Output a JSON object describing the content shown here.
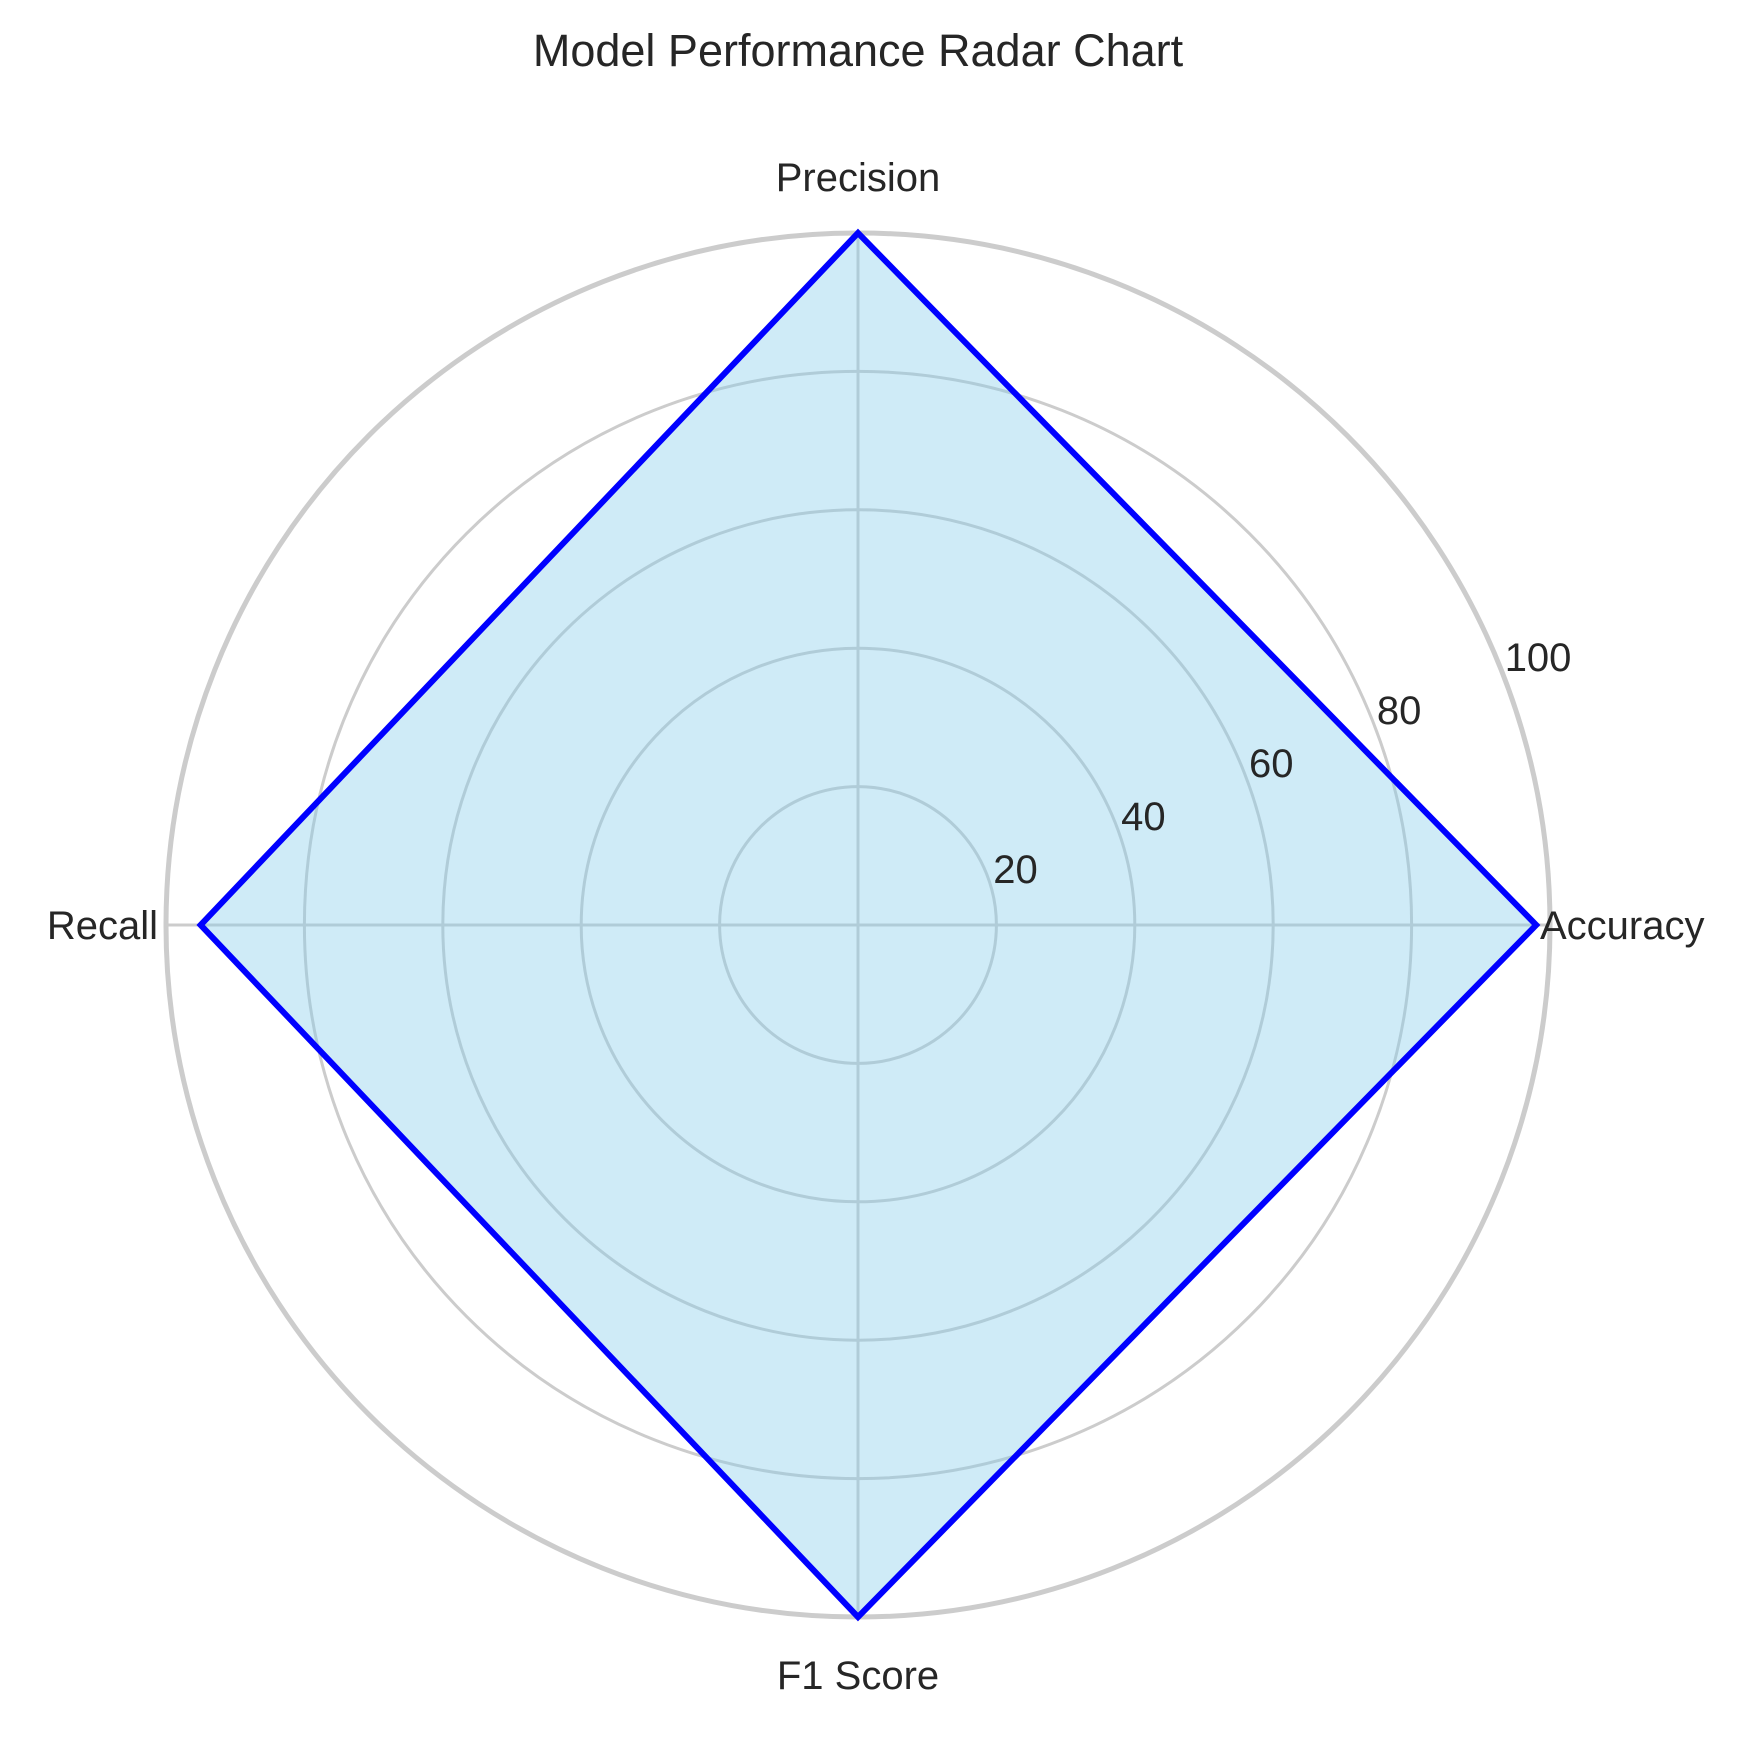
{
  "chart_data": {
    "type": "radar",
    "title": "Model Performance Radar Chart",
    "categories": [
      "Accuracy",
      "Precision",
      "Recall",
      "F1 Score"
    ],
    "series": [
      {
        "values": [
          98,
          100,
          95,
          100
        ],
        "line_color": "#0000ff",
        "fill_color": "#87ceeb",
        "fill_opacity": 0.4
      }
    ],
    "rlim": [
      0,
      100
    ],
    "r_ticks": [
      20,
      40,
      60,
      80,
      100
    ],
    "r_tick_labels": [
      "20",
      "40",
      "60",
      "80",
      "100"
    ],
    "grid": true,
    "grid_color": "#cccccc"
  }
}
